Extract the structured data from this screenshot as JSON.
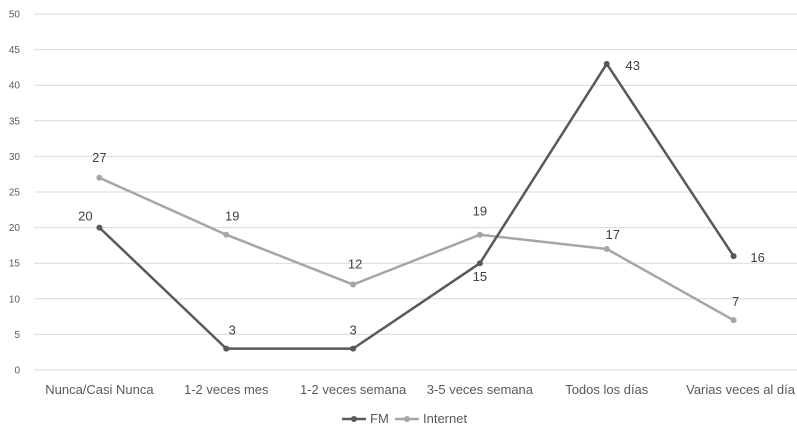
{
  "chart_data": {
    "type": "line",
    "title": "",
    "xlabel": "",
    "ylabel": "",
    "ylim": [
      0,
      50
    ],
    "yticks": [
      0,
      5,
      10,
      15,
      20,
      25,
      30,
      35,
      40,
      45,
      50
    ],
    "grid": true,
    "legend_position": "bottom",
    "categories": [
      "Nunca/Casi Nunca",
      "1-2 veces mes",
      "1-2 veces semana",
      "3-5 veces semana",
      "Todos los días",
      "Varias veces al día"
    ],
    "series": [
      {
        "name": "FM",
        "values": [
          20,
          3,
          3,
          15,
          43,
          16
        ],
        "color": "#595959"
      },
      {
        "name": "Internet",
        "values": [
          27,
          19,
          12,
          19,
          17,
          7
        ],
        "color": "#a6a6a6"
      }
    ]
  }
}
